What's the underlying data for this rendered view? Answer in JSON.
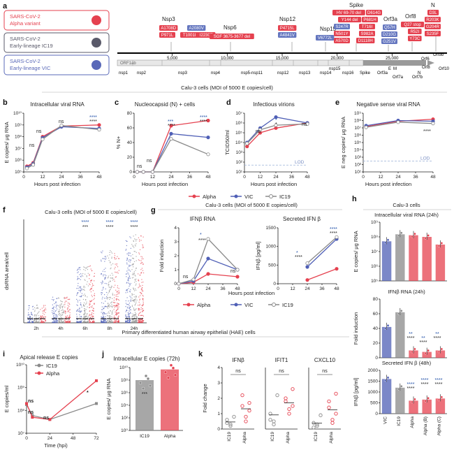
{
  "panels": {
    "a": "a",
    "b": "b",
    "c": "c",
    "d": "d",
    "e": "e",
    "f": "f",
    "g": "g",
    "h": "h",
    "i": "i",
    "j": "j",
    "k": "k"
  },
  "colors": {
    "alpha": "#e5414f",
    "vic": "#4f5fb6",
    "ic19": "#8a8a8a",
    "chip_red": "#e5414f",
    "chip_blue": "#6476bf",
    "lod": "#9ab0d8"
  },
  "legend_variants": [
    {
      "name": "SARS-CoV-2",
      "sub": "Alpha variant",
      "color": "#e5414f"
    },
    {
      "name": "SARS-CoV-2",
      "sub": "Early-lineage IC19",
      "color": "#5a5a6a"
    },
    {
      "name": "SARS-CoV-2",
      "sub": "Early-lineage VIC",
      "color": "#5968b8"
    }
  ],
  "genome": {
    "genes": [
      "Nsp3",
      "Nsp6",
      "Nsp12",
      "Nsp15",
      "Spike",
      "Orf3a",
      "Orf8",
      "N"
    ],
    "mutations": {
      "nsp3": [
        "A1708D",
        "A2080V",
        "P971L",
        "T1001I",
        "I2230T"
      ],
      "nsp6": [
        "SGF 3675-3677 del"
      ],
      "nsp12": [
        "P4715L",
        "A4841V"
      ],
      "nsp15": [
        "V6772L"
      ],
      "spike": [
        "HV 69-70 del",
        "D614G",
        "Y144 del",
        "P681H",
        "S247R",
        "T716I",
        "N501Y",
        "S982A",
        "A570D",
        "D1118H"
      ],
      "orf3a": [
        "Q57H",
        "D210G",
        "G251V"
      ],
      "orf8": [
        "Q27 stop",
        "R52I",
        "Y73C"
      ],
      "n": [
        "D3L",
        "R203K",
        "G204R",
        "S235F"
      ]
    },
    "scale": [
      "5,000",
      "10,000",
      "15,000",
      "20,000",
      "25,000"
    ],
    "orfs": [
      "ORF1ab",
      "nsp1",
      "nsp2",
      "nsp3",
      "nsp4",
      "nsp5-nsp11",
      "nsp12",
      "nsp13",
      "nsp14",
      "nsp15",
      "nsp16",
      "Spike",
      "Orf3a",
      "E",
      "M",
      "Orf6",
      "Orf7a",
      "Orf8",
      "Orf7b",
      "N",
      "Orf9b",
      "Orf10"
    ]
  },
  "row1_title": "Calu-3 cells (MOI of 5000 E copies/cell)",
  "b": {
    "title": "Intracellular viral RNA",
    "ylabel": "E copies/ μg RNA",
    "xlabel": "Hours post infection",
    "yticks": [
      "10⁵",
      "10⁶",
      "10⁷",
      "10⁸",
      "10⁹",
      "10¹⁰"
    ],
    "xticks": [
      "0",
      "12",
      "24",
      "36",
      "48"
    ],
    "sig": [
      "ns",
      "ns",
      "ns",
      "****",
      "****"
    ]
  },
  "c": {
    "title": "Nucleocapsid (N) + cells",
    "ylabel": "% N+",
    "xlabel": "Hours post infection",
    "yticks": [
      "0",
      "20",
      "40",
      "60",
      "80"
    ],
    "xticks": [
      "0",
      "12",
      "24",
      "36",
      "48"
    ],
    "sig": [
      "ns",
      "ns",
      "***",
      "****",
      "****",
      "****"
    ]
  },
  "d": {
    "title": "Infectious virions",
    "ylabel": "TCID50/ml",
    "xlabel": "Hours post infection",
    "yticks": [
      "10¹",
      "10²",
      "10³",
      "10⁴",
      "10⁵",
      "10⁶",
      "10⁷"
    ],
    "xticks": [
      "0",
      "12",
      "24",
      "36",
      "48"
    ],
    "lod": "LOD",
    "sig": [
      "ns",
      "*",
      "*",
      "ns"
    ]
  },
  "e": {
    "title": "Negative sense viral RNA",
    "ylabel": "E neg copies/ μg RNA",
    "xlabel": "Hours post infection",
    "yticks": [
      "10¹",
      "10²",
      "10³",
      "10⁴",
      "10⁵",
      "10⁶",
      "10⁷",
      "10⁸",
      "10⁹"
    ],
    "xticks": [
      "0",
      "12",
      "24",
      "36",
      "48"
    ],
    "lod": "LOD",
    "sig": [
      "****"
    ]
  },
  "legend_row": [
    "Alpha",
    "VIC",
    "IC19"
  ],
  "f": {
    "title": "Calu-3 cells (MOI of 5000 E copies/cell)",
    "ylabel": "dsRNA area/cell",
    "xticks": [
      "2h",
      "4h",
      "6h",
      "8h",
      "24h"
    ],
    "sig_top": [
      "****",
      "****",
      "****"
    ],
    "sig_bot": [
      "***",
      "****",
      "****"
    ]
  },
  "g": {
    "title": "Calu-3 cells (MOI of 5000 E copies/cell)",
    "sub1": "IFNβ RNA",
    "sub2": "Secreted IFN β",
    "ylabel1": "Fold induction",
    "ylabel2": "IFNβ [pg/ml]",
    "xlabel": "Hours post infection",
    "yticks1": [
      "0",
      "1",
      "2",
      "3",
      "4"
    ],
    "xticks1": [
      "0",
      "12",
      "24",
      "36",
      "48"
    ],
    "yticks2": [
      "0",
      "500",
      "1000",
      "1500"
    ],
    "xticks2": [
      "0",
      "12",
      "24",
      "36",
      "48"
    ],
    "sig1": [
      "ns",
      "*",
      "****",
      "ns"
    ],
    "sig2": [
      "*",
      "****",
      "****",
      "****"
    ]
  },
  "h": {
    "title": "Calu-3 cells",
    "sub1": "Intracellular viral RNA (24h)",
    "ylabel1": "E copies/ μg RNA",
    "yticks1": [
      "10⁵",
      "10⁶",
      "10⁷",
      "10⁸",
      "10⁹"
    ],
    "sub2": "IFNβ RNA (24h)",
    "ylabel2": "Fold induction",
    "yticks2": [
      "0",
      "20",
      "40",
      "60",
      "80"
    ],
    "sub3": "Secreted IFN β (48h)",
    "ylabel3": "IFNβ [pg/ml]",
    "yticks3": [
      "0",
      "500",
      "1000",
      "1500",
      "2000"
    ],
    "xcats": [
      "VIC",
      "IC19",
      "Alpha",
      "Alpha (B)",
      "Alpha (C)"
    ],
    "sig2": [
      "**",
      "****",
      "**",
      "****",
      "**",
      "****"
    ],
    "sig3": [
      "****",
      "****",
      "****",
      "****",
      "****",
      "****",
      "****",
      "****"
    ]
  },
  "row3_title": "Primary differentiated human airway epithelial (HAE) cells",
  "i": {
    "title": "Apical release E copies",
    "ylabel": "E copies/ml",
    "xlabel": "Time (hpi)",
    "yticks": [
      "10⁷",
      "10⁸",
      "10⁹",
      "10¹⁰"
    ],
    "xticks": [
      "0",
      "24",
      "48",
      "72"
    ],
    "legend": [
      "IC19",
      "Alpha"
    ],
    "sig": [
      "ns",
      "ns",
      "ns",
      "*"
    ]
  },
  "j": {
    "title": "Intracellular E copies (72h)",
    "ylabel": "E copies/ μg RNA",
    "yticks": [
      "10⁰",
      "10²",
      "10⁴",
      "10⁶",
      "10⁸",
      "10¹⁰"
    ],
    "xcats": [
      "IC19",
      "Alpha"
    ],
    "sig": "***"
  },
  "k": {
    "subs": [
      "IFNβ",
      "IFIT1",
      "CXCL10"
    ],
    "ylabel": "Fold change",
    "yticks": [
      "0",
      "1",
      "2",
      "3",
      "4"
    ],
    "xcats": [
      "IC19",
      "Alpha"
    ],
    "sig": "ns"
  },
  "chart_data": [
    {
      "type": "line",
      "panel": "b",
      "title": "Intracellular viral RNA",
      "x": [
        2,
        6,
        12,
        24,
        48
      ],
      "ylabel": "E copies/ μg RNA",
      "xlabel": "Hours post infection",
      "ylim": [
        100000,
        10000000000
      ],
      "log_y": true,
      "series": [
        {
          "name": "Alpha",
          "values": [
            300000,
            600000,
            100000000,
            800000000,
            1000000000
          ]
        },
        {
          "name": "VIC",
          "values": [
            250000,
            500000,
            80000000,
            700000000,
            500000000
          ]
        },
        {
          "name": "IC19",
          "values": [
            200000,
            400000,
            60000000,
            900000000,
            400000000
          ]
        }
      ]
    },
    {
      "type": "line",
      "panel": "c",
      "title": "Nucleocapsid (N) + cells",
      "x": [
        2,
        6,
        12,
        24,
        48
      ],
      "ylabel": "% N+",
      "xlabel": "Hours post infection",
      "ylim": [
        0,
        80
      ],
      "series": [
        {
          "name": "Alpha",
          "values": [
            0,
            0,
            0,
            63,
            70
          ]
        },
        {
          "name": "VIC",
          "values": [
            0,
            0,
            0,
            52,
            47
          ]
        },
        {
          "name": "IC19",
          "values": [
            0,
            0,
            0,
            45,
            24
          ]
        }
      ]
    },
    {
      "type": "line",
      "panel": "d",
      "title": "Infectious virions",
      "x": [
        2,
        12,
        24,
        48
      ],
      "ylabel": "TCID50/ml",
      "xlabel": "Hours post infection",
      "ylim": [
        10,
        10000000
      ],
      "log_y": true,
      "series": [
        {
          "name": "Alpha",
          "values": [
            4000,
            100000,
            300000,
            1000000
          ]
        },
        {
          "name": "VIC",
          "values": [
            10000,
            300000,
            4000000,
            1000000
          ]
        },
        {
          "name": "IC19",
          "values": [
            8000,
            200000,
            600000,
            800000
          ]
        }
      ]
    },
    {
      "type": "line",
      "panel": "e",
      "title": "Negative sense viral RNA",
      "x": [
        2,
        24,
        48
      ],
      "ylabel": "E neg copies/ μg RNA",
      "xlabel": "Hours post infection",
      "ylim": [
        10,
        1000000000
      ],
      "log_y": true,
      "series": [
        {
          "name": "Alpha",
          "values": [
            15000000,
            80000000,
            150000000
          ]
        },
        {
          "name": "VIC",
          "values": [
            20000000,
            100000000,
            80000000
          ]
        },
        {
          "name": "IC19",
          "values": [
            12000000,
            60000000,
            40000000
          ]
        }
      ]
    },
    {
      "type": "line",
      "panel": "g1",
      "title": "IFNβ RNA",
      "x": [
        0,
        12,
        24,
        48
      ],
      "ylabel": "Fold induction",
      "xlabel": "Hours post infection",
      "ylim": [
        0,
        4
      ],
      "series": [
        {
          "name": "Alpha",
          "values": [
            0,
            0.1,
            0.7,
            0.5
          ]
        },
        {
          "name": "VIC",
          "values": [
            0,
            0.2,
            1.8,
            1.0
          ]
        },
        {
          "name": "IC19",
          "values": [
            0,
            0.3,
            3.2,
            1.0
          ]
        }
      ]
    },
    {
      "type": "line",
      "panel": "g2",
      "title": "Secreted IFN β",
      "x": [
        24,
        48
      ],
      "ylabel": "IFNβ [pg/ml]",
      "xlabel": "Hours post infection",
      "ylim": [
        0,
        1500
      ],
      "series": [
        {
          "name": "Alpha",
          "values": [
            100,
            400
          ]
        },
        {
          "name": "VIC",
          "values": [
            450,
            1200
          ]
        },
        {
          "name": "IC19",
          "values": [
            550,
            1250
          ]
        }
      ]
    },
    {
      "type": "bar",
      "panel": "h1",
      "title": "Intracellular viral RNA (24h)",
      "categories": [
        "VIC",
        "IC19",
        "Alpha",
        "Alpha (B)",
        "Alpha (C)"
      ],
      "values": [
        50000000,
        150000000,
        130000000,
        100000000,
        30000000
      ],
      "ylim": [
        100000,
        1000000000
      ],
      "log_y": true
    },
    {
      "type": "bar",
      "panel": "h2",
      "title": "IFNβ RNA (24h)",
      "categories": [
        "VIC",
        "IC19",
        "Alpha",
        "Alpha (B)",
        "Alpha (C)"
      ],
      "values": [
        42,
        62,
        10,
        8,
        10
      ],
      "ylim": [
        0,
        80
      ]
    },
    {
      "type": "bar",
      "panel": "h3",
      "title": "Secreted IFN β (48h)",
      "categories": [
        "VIC",
        "IC19",
        "Alpha",
        "Alpha (B)",
        "Alpha (C)"
      ],
      "values": [
        1600,
        1200,
        600,
        650,
        700
      ],
      "ylim": [
        0,
        2000
      ]
    },
    {
      "type": "line",
      "panel": "i",
      "title": "Apical release E copies",
      "x": [
        0,
        6,
        24,
        72
      ],
      "ylabel": "E copies/ml",
      "xlabel": "Time (hpi)",
      "ylim": [
        10000000,
        10000000000
      ],
      "log_y": true,
      "series": [
        {
          "name": "IC19",
          "values": [
            180000000,
            60000000,
            40000000,
            200000000
          ]
        },
        {
          "name": "Alpha",
          "values": [
            200000000,
            50000000,
            40000000,
            2000000000
          ]
        }
      ]
    },
    {
      "type": "bar",
      "panel": "j",
      "title": "Intracellular E copies (72h)",
      "categories": [
        "IC19",
        "Alpha"
      ],
      "values": [
        100000000,
        5000000000
      ],
      "ylim": [
        1,
        10000000000
      ],
      "log_y": true
    }
  ]
}
